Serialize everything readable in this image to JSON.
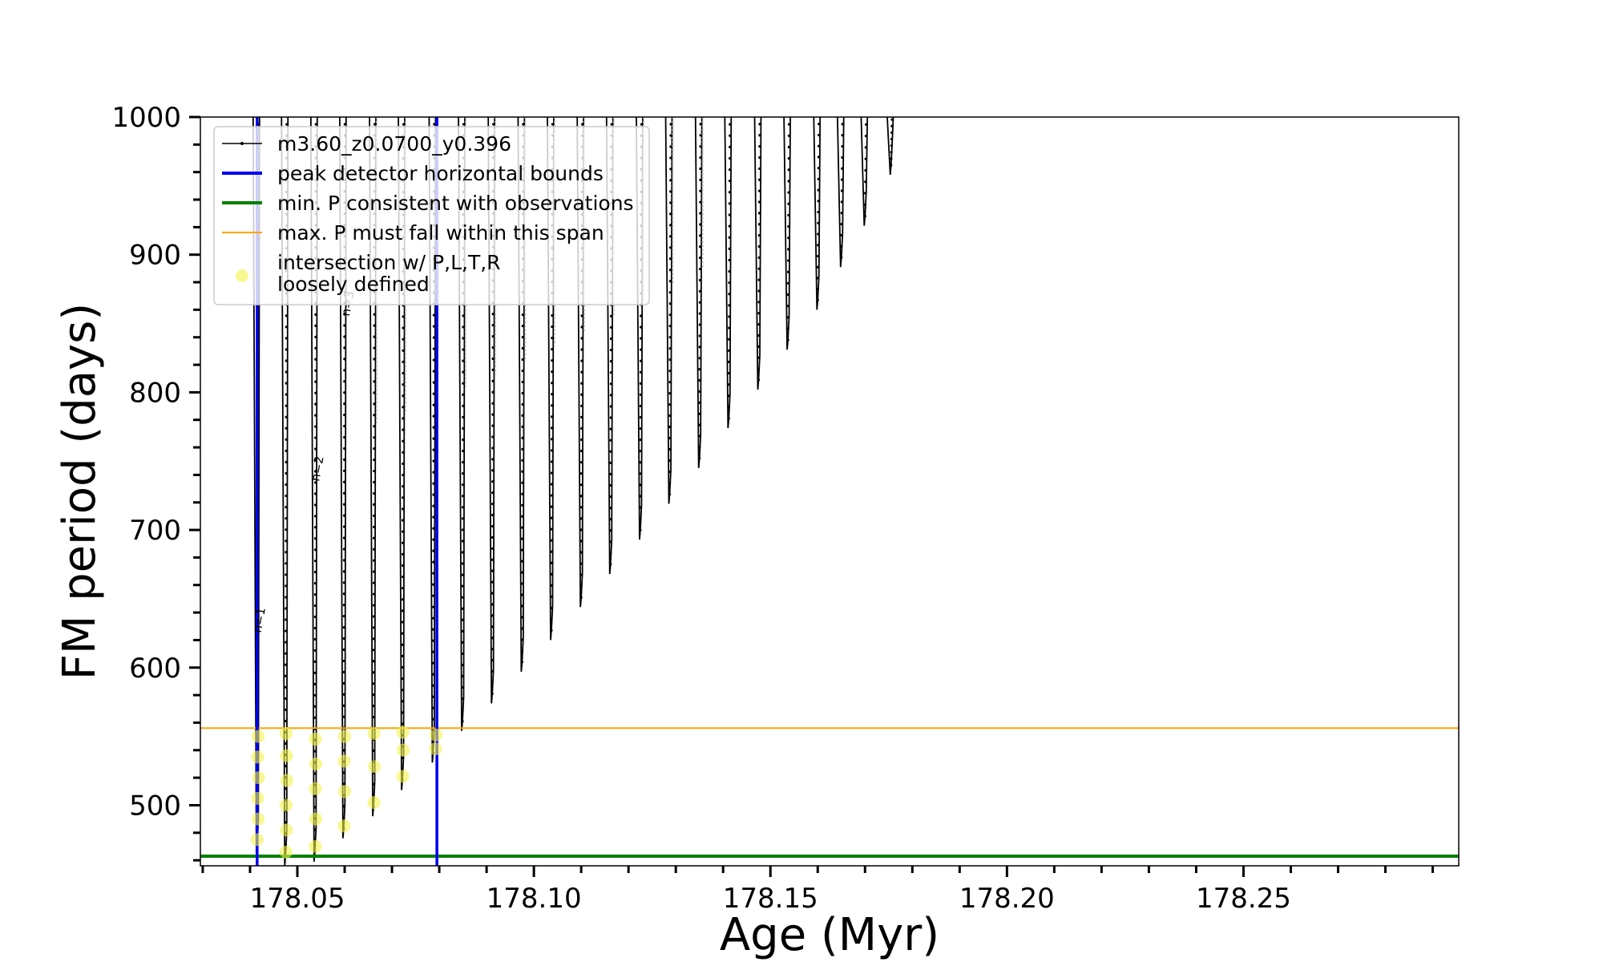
{
  "chart_data": {
    "type": "line",
    "xlabel": "Age (Myr)",
    "ylabel": "FM period (days)",
    "xlim": [
      178.0295,
      178.2955
    ],
    "ylim": [
      456,
      1000
    ],
    "xticks": [
      178.05,
      178.1,
      178.15,
      178.2,
      178.25
    ],
    "xtick_labels": [
      "178.05",
      "178.10",
      "178.15",
      "178.20",
      "178.25"
    ],
    "x_minor_step": 0.01,
    "yticks": [
      500,
      600,
      700,
      800,
      900,
      1000
    ],
    "ytick_labels": [
      "500",
      "600",
      "700",
      "800",
      "900",
      "1000"
    ],
    "y_minor_step": 20,
    "grid": false,
    "legend_position": "top-left",
    "model_track": {
      "name": "m3.60_z0.0700_y0.396",
      "color": "#000000",
      "cycles": [
        {
          "age": 178.0415,
          "min_period": 472
        },
        {
          "age": 178.0475,
          "min_period": 463
        },
        {
          "age": 178.0537,
          "min_period": 466
        },
        {
          "age": 178.0598,
          "min_period": 483
        },
        {
          "age": 178.0661,
          "min_period": 499
        },
        {
          "age": 178.0722,
          "min_period": 518
        },
        {
          "age": 178.0787,
          "min_period": 538
        },
        {
          "age": 178.0849,
          "min_period": 561
        },
        {
          "age": 178.0912,
          "min_period": 581
        },
        {
          "age": 178.0975,
          "min_period": 604
        },
        {
          "age": 178.1037,
          "min_period": 627
        },
        {
          "age": 178.11,
          "min_period": 651
        },
        {
          "age": 178.1162,
          "min_period": 675
        },
        {
          "age": 178.1225,
          "min_period": 700
        },
        {
          "age": 178.1287,
          "min_period": 726
        },
        {
          "age": 178.135,
          "min_period": 752
        },
        {
          "age": 178.1412,
          "min_period": 781
        },
        {
          "age": 178.1475,
          "min_period": 809
        },
        {
          "age": 178.1537,
          "min_period": 838
        },
        {
          "age": 178.16,
          "min_period": 867
        },
        {
          "age": 178.165,
          "min_period": 898
        },
        {
          "age": 178.17,
          "min_period": 928
        },
        {
          "age": 178.1755,
          "min_period": 965
        }
      ]
    },
    "vertical_lines": {
      "name": "peak detector horizontal bounds",
      "color": "#0000ee",
      "x": [
        178.0415,
        178.0795
      ]
    },
    "min_period_line": {
      "name": "min. P consistent with observations",
      "color": "#008000",
      "y": 463
    },
    "max_period_line": {
      "name": "max. P must fall within this span",
      "color": "#ffa500",
      "y": 556
    },
    "intersections": {
      "name_line1": "intersection w/ P,L,T,R",
      "name_line2": "loosely defined",
      "color": "#f4f44a",
      "points": [
        {
          "x": 178.0415,
          "y": 475
        },
        {
          "x": 178.0417,
          "y": 490
        },
        {
          "x": 178.0416,
          "y": 505
        },
        {
          "x": 178.0418,
          "y": 520
        },
        {
          "x": 178.0416,
          "y": 535
        },
        {
          "x": 178.0417,
          "y": 550
        },
        {
          "x": 178.0476,
          "y": 466
        },
        {
          "x": 178.0477,
          "y": 482
        },
        {
          "x": 178.0476,
          "y": 500
        },
        {
          "x": 178.0478,
          "y": 518
        },
        {
          "x": 178.0477,
          "y": 536
        },
        {
          "x": 178.0476,
          "y": 552
        },
        {
          "x": 178.0538,
          "y": 470
        },
        {
          "x": 178.0539,
          "y": 490
        },
        {
          "x": 178.0538,
          "y": 512
        },
        {
          "x": 178.0539,
          "y": 530
        },
        {
          "x": 178.0538,
          "y": 548
        },
        {
          "x": 178.0599,
          "y": 485
        },
        {
          "x": 178.06,
          "y": 510
        },
        {
          "x": 178.0599,
          "y": 532
        },
        {
          "x": 178.06,
          "y": 550
        },
        {
          "x": 178.0662,
          "y": 502
        },
        {
          "x": 178.0663,
          "y": 528
        },
        {
          "x": 178.0662,
          "y": 552
        },
        {
          "x": 178.0723,
          "y": 521
        },
        {
          "x": 178.0724,
          "y": 540
        },
        {
          "x": 178.0723,
          "y": 553
        },
        {
          "x": 178.0792,
          "y": 541
        },
        {
          "x": 178.0793,
          "y": 551
        }
      ]
    },
    "annotations": [
      {
        "text": "n=1",
        "x": 178.0423,
        "y": 625
      },
      {
        "text": "n=2",
        "x": 178.0546,
        "y": 735
      },
      {
        "text": "n=3",
        "x": 178.061,
        "y": 855
      }
    ]
  }
}
